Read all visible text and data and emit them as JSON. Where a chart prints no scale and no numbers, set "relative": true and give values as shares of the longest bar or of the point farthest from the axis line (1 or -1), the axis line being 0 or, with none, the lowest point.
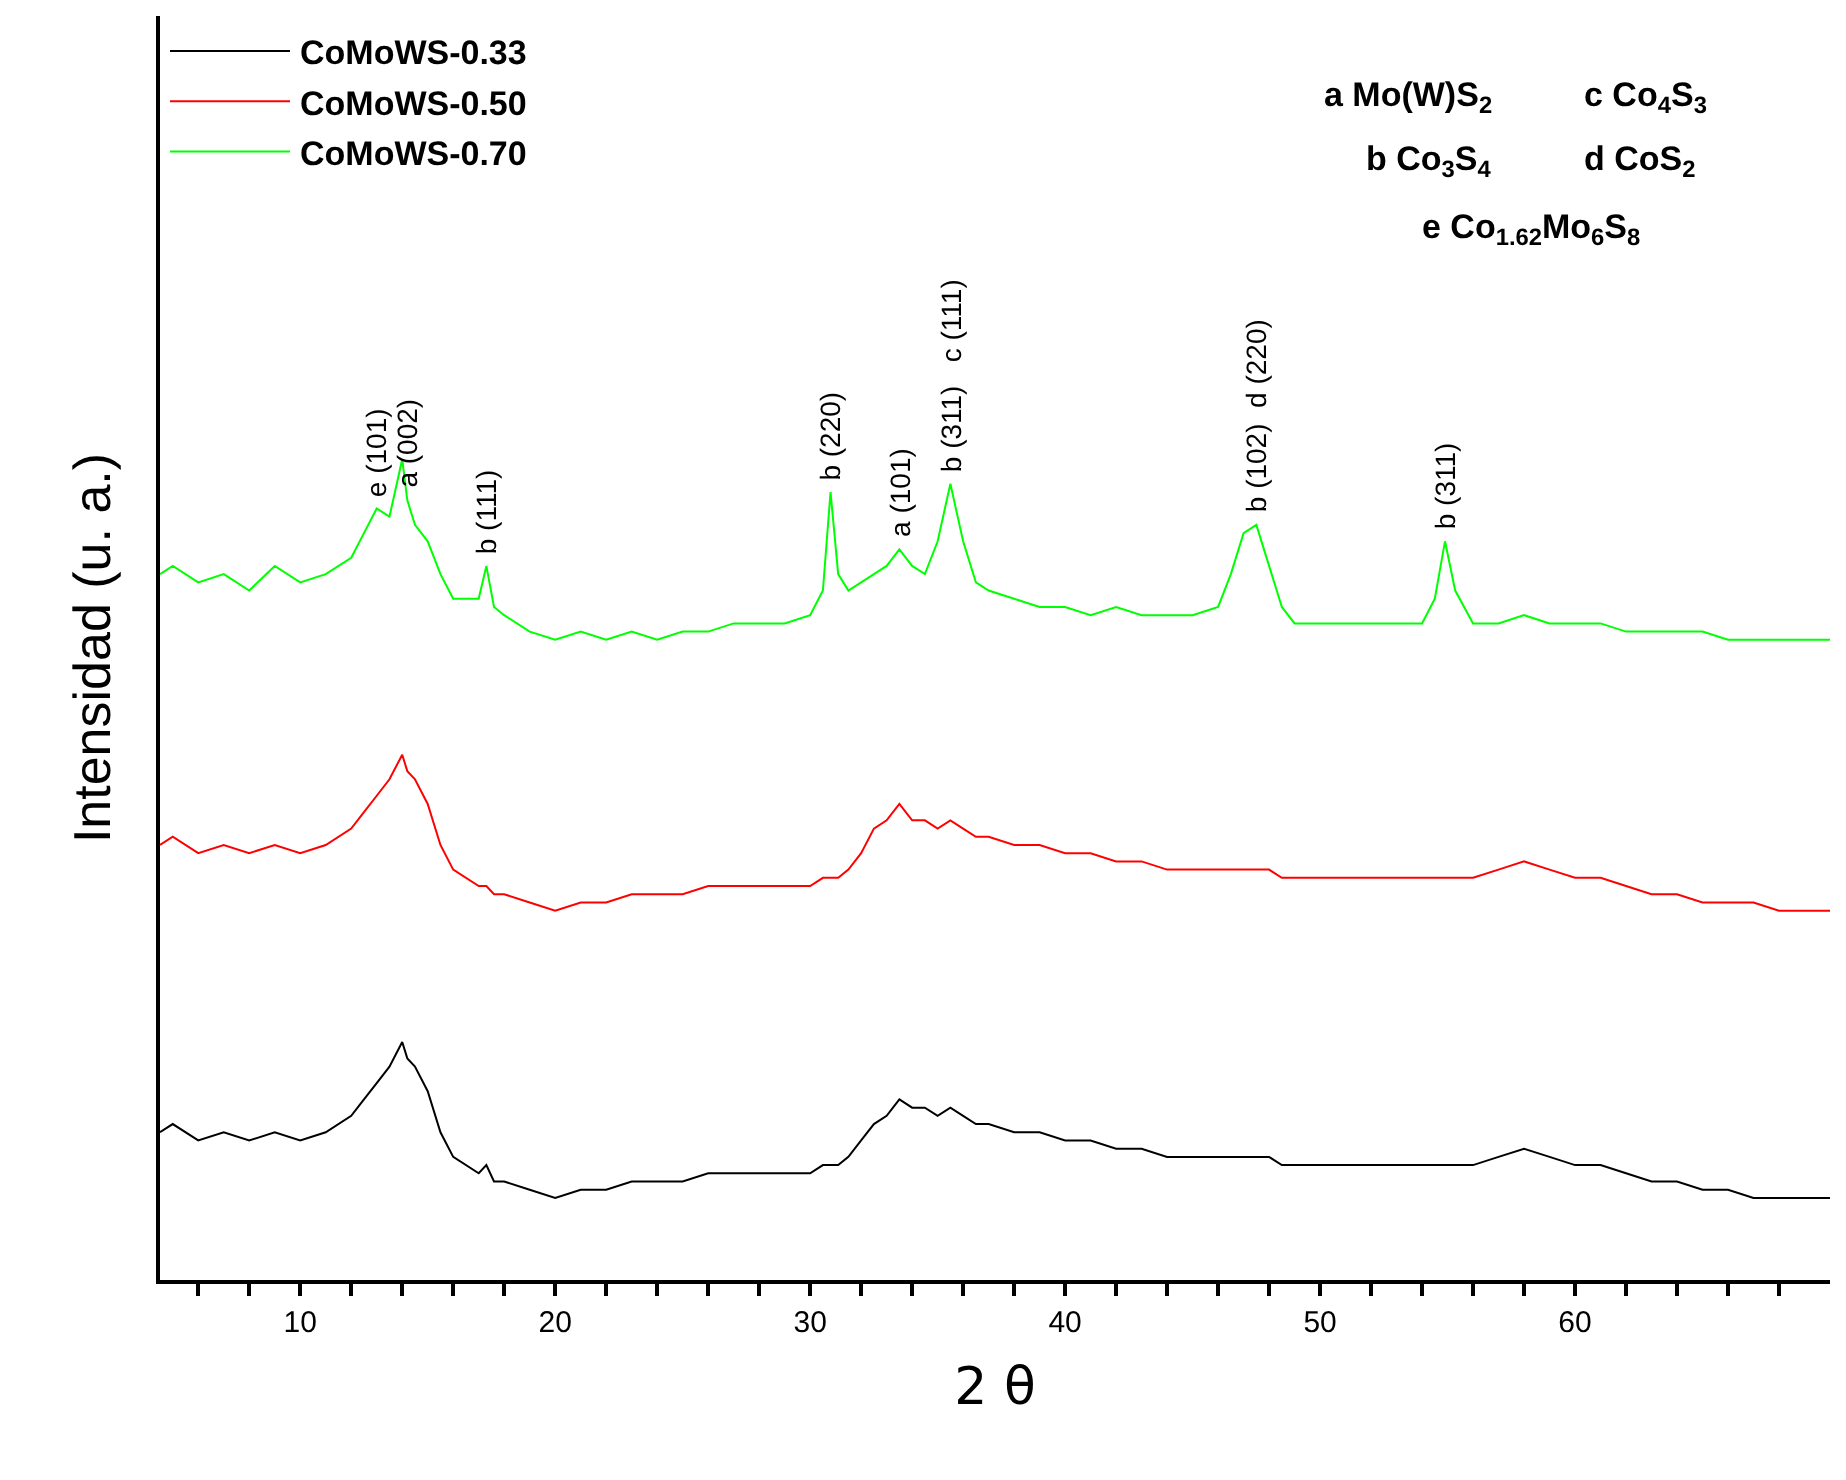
{
  "chart_data": {
    "type": "line",
    "relative": true,
    "xlabel": "2 θ",
    "ylabel": "Intensidad (u. a.)",
    "xlim": [
      4.5,
      70
    ],
    "xticks": [
      {
        "value": 6,
        "label": null
      },
      {
        "value": 8,
        "label": null
      },
      10,
      {
        "value": 12,
        "label": null
      },
      {
        "value": 14,
        "label": null
      },
      {
        "value": 16,
        "label": null
      },
      {
        "value": 18,
        "label": null
      },
      20,
      {
        "value": 22,
        "label": null
      },
      {
        "value": 24,
        "label": null
      },
      {
        "value": 26,
        "label": null
      },
      {
        "value": 28,
        "label": null
      },
      30,
      {
        "value": 32,
        "label": null
      },
      {
        "value": 34,
        "label": null
      },
      {
        "value": 36,
        "label": null
      },
      {
        "value": 38,
        "label": null
      },
      40,
      {
        "value": 42,
        "label": null
      },
      {
        "value": 44,
        "label": null
      },
      {
        "value": 46,
        "label": null
      },
      {
        "value": 48,
        "label": null
      },
      50,
      {
        "value": 52,
        "label": null
      },
      {
        "value": 54,
        "label": null
      },
      {
        "value": 56,
        "label": null
      },
      {
        "value": 58,
        "label": null
      },
      60,
      {
        "value": 62,
        "label": null
      },
      {
        "value": 64,
        "label": null
      },
      {
        "value": 66,
        "label": null
      },
      {
        "value": 68,
        "label": null
      }
    ],
    "x": [
      4.5,
      5,
      6,
      7,
      8,
      9,
      10,
      11,
      12,
      12.5,
      13,
      13.5,
      14,
      14.2,
      14.5,
      15,
      15.5,
      16,
      17,
      17.3,
      17.6,
      18,
      19,
      20,
      21,
      22,
      23,
      24,
      25,
      26,
      27,
      28,
      29,
      30,
      30.5,
      30.8,
      31.1,
      31.5,
      32,
      32.5,
      33,
      33.5,
      34,
      34.5,
      35,
      35.5,
      36,
      36.5,
      37,
      38,
      39,
      40,
      41,
      42,
      43,
      44,
      45,
      46,
      46.5,
      47,
      47.5,
      48,
      48.5,
      49,
      50,
      51,
      52,
      53,
      54,
      54.5,
      54.9,
      55.3,
      56,
      57,
      58,
      59,
      60,
      61,
      62,
      63,
      64,
      65,
      66,
      67,
      68,
      69,
      70
    ],
    "series": [
      {
        "name": "CoMoWS-0.33",
        "color": "#000000",
        "values": [
          0.18,
          0.19,
          0.17,
          0.18,
          0.17,
          0.18,
          0.17,
          0.18,
          0.2,
          0.22,
          0.24,
          0.26,
          0.29,
          0.27,
          0.26,
          0.23,
          0.18,
          0.15,
          0.13,
          0.14,
          0.12,
          0.12,
          0.11,
          0.1,
          0.11,
          0.11,
          0.12,
          0.12,
          0.12,
          0.13,
          0.13,
          0.13,
          0.13,
          0.13,
          0.14,
          0.14,
          0.14,
          0.15,
          0.17,
          0.19,
          0.2,
          0.22,
          0.21,
          0.21,
          0.2,
          0.21,
          0.2,
          0.19,
          0.19,
          0.18,
          0.18,
          0.17,
          0.17,
          0.16,
          0.16,
          0.15,
          0.15,
          0.15,
          0.15,
          0.15,
          0.15,
          0.15,
          0.14,
          0.14,
          0.14,
          0.14,
          0.14,
          0.14,
          0.14,
          0.14,
          0.14,
          0.14,
          0.14,
          0.15,
          0.16,
          0.15,
          0.14,
          0.14,
          0.13,
          0.12,
          0.12,
          0.11,
          0.11,
          0.1,
          0.1,
          0.1,
          0.1
        ]
      },
      {
        "name": "CoMoWS-0.50",
        "color": "#ff0000",
        "values": [
          0.53,
          0.54,
          0.52,
          0.53,
          0.52,
          0.53,
          0.52,
          0.53,
          0.55,
          0.57,
          0.59,
          0.61,
          0.64,
          0.62,
          0.61,
          0.58,
          0.53,
          0.5,
          0.48,
          0.48,
          0.47,
          0.47,
          0.46,
          0.45,
          0.46,
          0.46,
          0.47,
          0.47,
          0.47,
          0.48,
          0.48,
          0.48,
          0.48,
          0.48,
          0.49,
          0.49,
          0.49,
          0.5,
          0.52,
          0.55,
          0.56,
          0.58,
          0.56,
          0.56,
          0.55,
          0.56,
          0.55,
          0.54,
          0.54,
          0.53,
          0.53,
          0.52,
          0.52,
          0.51,
          0.51,
          0.5,
          0.5,
          0.5,
          0.5,
          0.5,
          0.5,
          0.5,
          0.49,
          0.49,
          0.49,
          0.49,
          0.49,
          0.49,
          0.49,
          0.49,
          0.49,
          0.49,
          0.49,
          0.5,
          0.51,
          0.5,
          0.49,
          0.49,
          0.48,
          0.47,
          0.47,
          0.46,
          0.46,
          0.46,
          0.45,
          0.45,
          0.45
        ]
      },
      {
        "name": "CoMoWS-0.70",
        "color": "#00ff00",
        "values": [
          0.86,
          0.87,
          0.85,
          0.86,
          0.84,
          0.87,
          0.85,
          0.86,
          0.88,
          0.91,
          0.94,
          0.93,
          1.0,
          0.95,
          0.92,
          0.9,
          0.86,
          0.83,
          0.83,
          0.87,
          0.82,
          0.81,
          0.79,
          0.78,
          0.79,
          0.78,
          0.79,
          0.78,
          0.79,
          0.79,
          0.8,
          0.8,
          0.8,
          0.81,
          0.84,
          0.96,
          0.86,
          0.84,
          0.85,
          0.86,
          0.87,
          0.89,
          0.87,
          0.86,
          0.9,
          0.97,
          0.9,
          0.85,
          0.84,
          0.83,
          0.82,
          0.82,
          0.81,
          0.82,
          0.81,
          0.81,
          0.81,
          0.82,
          0.86,
          0.91,
          0.92,
          0.87,
          0.82,
          0.8,
          0.8,
          0.8,
          0.8,
          0.8,
          0.8,
          0.83,
          0.9,
          0.84,
          0.8,
          0.8,
          0.81,
          0.8,
          0.8,
          0.8,
          0.79,
          0.79,
          0.79,
          0.79,
          0.78,
          0.78,
          0.78,
          0.78,
          0.78
        ]
      }
    ],
    "annotations": [
      {
        "text": "e (101)",
        "x": 13,
        "y": 0.94
      },
      {
        "text": "a (002)",
        "x": 14.2,
        "y": 0.95
      },
      {
        "text": "b (111)",
        "x": 17.3,
        "y": 0.87
      },
      {
        "text": "b (220)",
        "x": 30.8,
        "y": 0.96
      },
      {
        "text": "a (101)",
        "x": 33.5,
        "y": 0.89
      },
      {
        "text": "b (311)   c (111)",
        "x": 35.5,
        "y": 0.97
      },
      {
        "text": "b (102)  d (220)",
        "x": 47.5,
        "y": 0.92
      },
      {
        "text": "b (311)",
        "x": 54.9,
        "y": 0.9
      },
      "a Mo(W)S$_{2}$",
      "c Co$_{4}$S$_{3}$",
      "b Co$_{3}$S$_{4}$",
      "d CoS$_{2}$",
      "e Co$_{1.62}$Mo$_{6}$S$_{8}$"
    ],
    "legend": "top left",
    "marker": "none",
    "line_style": "solid"
  }
}
